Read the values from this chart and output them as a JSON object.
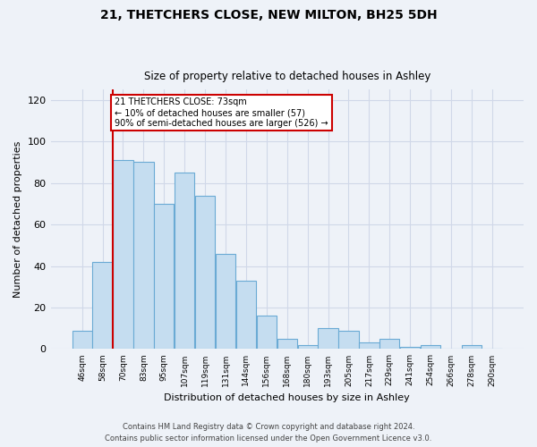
{
  "title": "21, THETCHERS CLOSE, NEW MILTON, BH25 5DH",
  "subtitle": "Size of property relative to detached houses in Ashley",
  "xlabel": "Distribution of detached houses by size in Ashley",
  "ylabel": "Number of detached properties",
  "bar_color": "#c5ddf0",
  "bar_edge_color": "#6aaad4",
  "categories": [
    "46sqm",
    "58sqm",
    "70sqm",
    "83sqm",
    "95sqm",
    "107sqm",
    "119sqm",
    "131sqm",
    "144sqm",
    "156sqm",
    "168sqm",
    "180sqm",
    "193sqm",
    "205sqm",
    "217sqm",
    "229sqm",
    "241sqm",
    "254sqm",
    "266sqm",
    "278sqm",
    "290sqm"
  ],
  "values": [
    9,
    42,
    91,
    90,
    70,
    85,
    74,
    46,
    33,
    16,
    5,
    2,
    10,
    9,
    3,
    5,
    1,
    2,
    0,
    2,
    0
  ],
  "ylim": [
    0,
    125
  ],
  "yticks": [
    0,
    20,
    40,
    60,
    80,
    100,
    120
  ],
  "vline_color": "#cc0000",
  "annotation_text": "21 THETCHERS CLOSE: 73sqm\n← 10% of detached houses are smaller (57)\n90% of semi-detached houses are larger (526) →",
  "annotation_box_color": "#ffffff",
  "annotation_box_edge": "#cc0000",
  "footer_line1": "Contains HM Land Registry data © Crown copyright and database right 2024.",
  "footer_line2": "Contains public sector information licensed under the Open Government Licence v3.0.",
  "background_color": "#eef2f8",
  "grid_color": "#d0d8e8"
}
